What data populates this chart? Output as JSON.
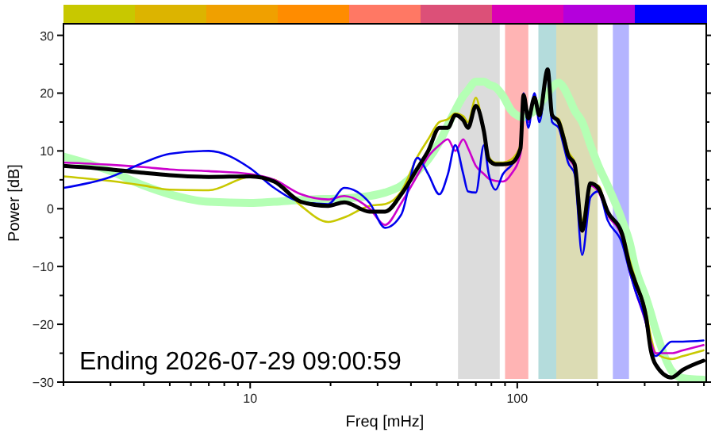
{
  "chart_data": {
    "type": "line",
    "xlabel": "Freq [mHz]",
    "ylabel": "Power [dB]",
    "log": "x",
    "annotations": [
      "Ending 2026-07-29 09:00:59"
    ],
    "xlim": [
      2,
      510
    ],
    "ylim": [
      -30,
      32
    ],
    "xticks": [
      {
        "value": 2,
        "label": null
      },
      {
        "value": 3,
        "label": null
      },
      {
        "value": 4,
        "label": null
      },
      {
        "value": 5,
        "label": null
      },
      {
        "value": 6,
        "label": null
      },
      {
        "value": 7,
        "label": null
      },
      {
        "value": 8,
        "label": null
      },
      {
        "value": 9,
        "label": null
      },
      10,
      {
        "value": 20,
        "label": null
      },
      {
        "value": 30,
        "label": null
      },
      {
        "value": 40,
        "label": null
      },
      {
        "value": 50,
        "label": null
      },
      {
        "value": 60,
        "label": null
      },
      {
        "value": 70,
        "label": null
      },
      {
        "value": 80,
        "label": null
      },
      {
        "value": 90,
        "label": null
      },
      100,
      {
        "value": 200,
        "label": null
      },
      {
        "value": 300,
        "label": null
      },
      {
        "value": 400,
        "label": null
      },
      {
        "value": 500,
        "label": null
      }
    ],
    "yticks": [
      -30,
      {
        "value": -25,
        "label": null
      },
      -20,
      {
        "value": -15,
        "label": null
      },
      -10,
      {
        "value": -5,
        "label": null
      },
      0,
      {
        "value": 5,
        "label": null
      },
      10,
      {
        "value": 15,
        "label": null
      },
      20,
      {
        "value": 25,
        "label": null
      },
      30
    ],
    "grid": false,
    "line_style": "solid",
    "marker": "none",
    "bands": [
      {
        "axis": "x",
        "from": 60,
        "to": 86,
        "color": "#dcdcdc"
      },
      {
        "axis": "x",
        "from": 90,
        "to": 110,
        "color": "#ffb4b4"
      },
      {
        "axis": "x",
        "from": 120,
        "to": 140,
        "color": "#b4dcdc"
      },
      {
        "axis": "x",
        "from": 140,
        "to": 200,
        "color": "#dcdcb4"
      },
      {
        "axis": "x",
        "from": 228,
        "to": 262,
        "color": "#b4b4ff"
      }
    ],
    "x": [
      2,
      3,
      4,
      5,
      7,
      10,
      12.3,
      15.5,
      19.6,
      22.5,
      28,
      32,
      36.8,
      42.3,
      46.4,
      51.1,
      55,
      58.6,
      62.8,
      65.4,
      70,
      75,
      78.2,
      83,
      88.4,
      95,
      102.8,
      105.6,
      110,
      116,
      121,
      130,
      135,
      143,
      149,
      155,
      164,
      175,
      188,
      201,
      218,
      247,
      264,
      276,
      304,
      316,
      330,
      378,
      416,
      498
    ],
    "series": [
      {
        "color": "#b4ffb4",
        "values": [
          9,
          6.5,
          4,
          2.5,
          1.2,
          1,
          1.2,
          1.5,
          1.7,
          1.8,
          2.2,
          2.8,
          4,
          6.5,
          8.5,
          11.5,
          14.5,
          17,
          19.5,
          20.5,
          22,
          22,
          21.5,
          21,
          19.5,
          17,
          15.9,
          15.8,
          16.2,
          17,
          18,
          20,
          21,
          21.8,
          21,
          19.5,
          17,
          15,
          11,
          7.5,
          4,
          -2,
          -6,
          -10,
          -15.5,
          -18,
          -21,
          -28,
          -29.3,
          -29.6
        ]
      },
      {
        "color": "#c8c800",
        "values": [
          5.6,
          4.8,
          4,
          3.3,
          3.2,
          5.5,
          5,
          0.5,
          -2.3,
          -1.5,
          0.5,
          0.8,
          3,
          9,
          12,
          15,
          15.5,
          16.5,
          16,
          15,
          19.2,
          13,
          9,
          8,
          8,
          8.5,
          11,
          19,
          15,
          19,
          16,
          23.5,
          16,
          15.5,
          13,
          10,
          8,
          -2,
          4,
          4,
          -1,
          -4,
          -9,
          -12,
          -18,
          -22,
          -25,
          -26,
          -25.5,
          -24.5
        ]
      },
      {
        "color": "#cc00cc",
        "values": [
          8,
          7.6,
          7.2,
          6.8,
          6.5,
          6,
          5,
          2.5,
          1.6,
          2.2,
          0,
          -2.8,
          1,
          5.8,
          9,
          11,
          12,
          10,
          12,
          10.5,
          7.4,
          6,
          5.2,
          4.8,
          4.7,
          6,
          9.5,
          19,
          15,
          19.5,
          16,
          24,
          16,
          15,
          12,
          9,
          7,
          -4,
          4,
          3,
          -1,
          -5,
          -11,
          -14,
          -20,
          -23,
          -25,
          -25,
          -24.5,
          -23.6
        ]
      },
      {
        "color": "#0000ee",
        "values": [
          3.6,
          5.5,
          8,
          9.5,
          10,
          7,
          3.6,
          1.2,
          0.8,
          3.6,
          1,
          -3.3,
          -1,
          8.8,
          6,
          2.5,
          6,
          11,
          6,
          3,
          2.8,
          11,
          6,
          3.3,
          6,
          7.5,
          10,
          20,
          14,
          20,
          15,
          23.5,
          15,
          14,
          11,
          8,
          6,
          -8,
          2,
          3,
          -2,
          -6,
          -11,
          -14,
          -20,
          -24,
          -25.5,
          -23,
          -23,
          -22.8
        ]
      },
      {
        "color": "#000000",
        "values": [
          7.4,
          6.8,
          6.2,
          5.8,
          5.5,
          5.6,
          4.7,
          1.2,
          0.5,
          1.1,
          -0.5,
          -0.5,
          2.5,
          7,
          10,
          14,
          14,
          16.2,
          15.3,
          14,
          17.8,
          13.4,
          8.5,
          7.7,
          7.7,
          7.9,
          10.4,
          19.7,
          15.6,
          19.2,
          16.2,
          24.1,
          16.2,
          15,
          12.3,
          9.3,
          7.7,
          -3.8,
          4.4,
          3.6,
          -0.5,
          -4.4,
          -10,
          -12.6,
          -18.9,
          -24.4,
          -27,
          -29.2,
          -27.9,
          -26.3
        ]
      }
    ]
  }
}
